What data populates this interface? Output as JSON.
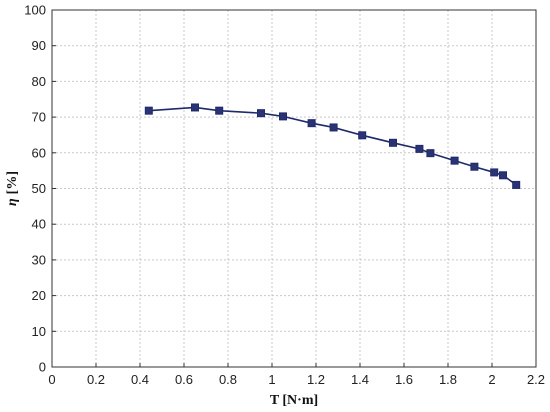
{
  "chart_data": {
    "type": "line",
    "title": "",
    "xlabel": "T [N·m]",
    "ylabel_symbol": "η",
    "ylabel_unit": "[%]",
    "xlim": [
      0,
      2.2
    ],
    "ylim": [
      0,
      100
    ],
    "xticks": [
      0,
      0.2,
      0.4,
      0.6,
      0.8,
      1,
      1.2,
      1.4,
      1.6,
      1.8,
      2,
      2.2
    ],
    "xtick_labels": [
      "0",
      "0.2",
      "0.4",
      "0.6",
      "0.8",
      "1",
      "1.2",
      "1.4",
      "1.6",
      "1.8",
      "2",
      "2.2"
    ],
    "yticks": [
      0,
      10,
      20,
      30,
      40,
      50,
      60,
      70,
      80,
      90,
      100
    ],
    "ytick_labels": [
      "0",
      "10",
      "20",
      "30",
      "40",
      "50",
      "60",
      "70",
      "80",
      "90",
      "100"
    ],
    "grid": true,
    "legend": "none",
    "marker": "square",
    "color": "#1f2a6b",
    "series": [
      {
        "x": [
          0.44,
          0.65,
          0.76,
          0.95,
          1.05,
          1.18,
          1.28,
          1.41,
          1.55,
          1.67,
          1.72,
          1.83,
          1.92,
          2.01,
          2.05,
          2.11
        ],
        "y": [
          71.8,
          72.7,
          71.8,
          71.1,
          70.2,
          68.3,
          67.1,
          64.9,
          62.8,
          61.1,
          59.9,
          57.8,
          56.1,
          54.5,
          53.7,
          51.0
        ]
      }
    ]
  }
}
